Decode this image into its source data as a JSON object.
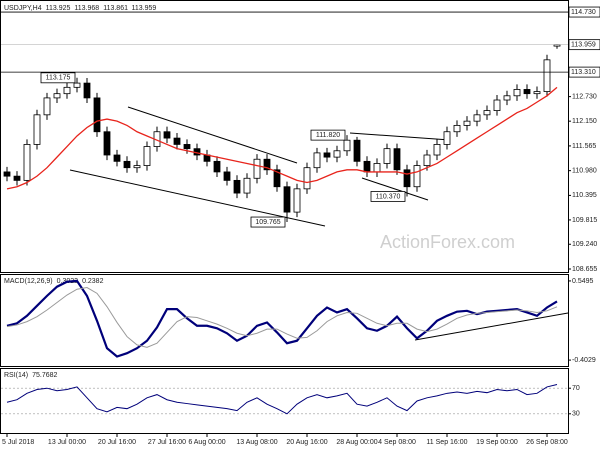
{
  "chart_data": [
    {
      "type": "candlestick",
      "title": "USDJPY,H4",
      "categories": [
        "5 Jul 2018",
        null,
        null,
        null,
        null,
        null,
        "13 Jul 00:00",
        null,
        null,
        null,
        null,
        "20 Jul 16:00",
        null,
        null,
        null,
        null,
        "27 Jul 16:00",
        null,
        null,
        null,
        "6 Aug 00:00",
        null,
        null,
        null,
        null,
        "13 Aug 08:00",
        null,
        null,
        null,
        null,
        "20 Aug 16:00",
        null,
        null,
        null,
        null,
        "28 Aug 00:00",
        null,
        null,
        null,
        "4 Sep 08:00",
        null,
        null,
        null,
        null,
        "11 Sep 16:00",
        null,
        null,
        null,
        null,
        "19 Sep 00:00",
        null,
        null,
        null,
        null,
        "26 Sep 08:00",
        null
      ],
      "open": [
        110.95,
        110.85,
        110.75,
        111.6,
        112.3,
        112.7,
        112.8,
        112.95,
        113.05,
        112.7,
        111.9,
        111.35,
        111.2,
        111.05,
        111.1,
        111.55,
        111.9,
        111.75,
        111.6,
        111.5,
        111.35,
        111.2,
        110.95,
        110.75,
        110.45,
        110.8,
        111.25,
        111.0,
        110.6,
        110.0,
        110.55,
        111.05,
        111.4,
        111.3,
        111.45,
        111.7,
        111.2,
        110.95,
        111.15,
        111.5,
        111.0,
        110.6,
        111.1,
        111.35,
        111.6,
        111.9,
        112.05,
        112.15,
        112.3,
        112.4,
        112.65,
        112.75,
        112.9,
        112.8,
        112.85,
        113.925
      ],
      "high": [
        111.07,
        110.97,
        111.72,
        112.42,
        112.82,
        112.92,
        113.07,
        113.175,
        113.17,
        112.82,
        112.02,
        111.47,
        111.32,
        111.22,
        111.67,
        112.02,
        112.02,
        111.87,
        111.72,
        111.62,
        111.47,
        111.32,
        111.07,
        110.87,
        110.92,
        111.37,
        111.37,
        111.12,
        110.72,
        110.67,
        111.17,
        111.52,
        111.52,
        111.57,
        111.82,
        111.78,
        111.32,
        111.27,
        111.62,
        111.62,
        111.12,
        111.22,
        111.47,
        111.72,
        112.02,
        112.17,
        112.27,
        112.42,
        112.52,
        112.77,
        112.87,
        113.02,
        113.02,
        112.97,
        113.72,
        113.968
      ],
      "low": [
        110.73,
        110.63,
        110.63,
        111.48,
        112.18,
        112.58,
        112.68,
        112.83,
        112.58,
        111.78,
        111.23,
        111.08,
        110.93,
        110.93,
        110.98,
        111.43,
        111.63,
        111.48,
        111.38,
        111.23,
        111.08,
        110.83,
        110.63,
        110.33,
        110.33,
        110.68,
        110.88,
        110.48,
        109.765,
        109.88,
        110.43,
        110.93,
        111.18,
        111.18,
        111.33,
        111.08,
        110.83,
        110.83,
        111.03,
        110.88,
        110.37,
        110.48,
        110.98,
        111.23,
        111.48,
        111.78,
        111.93,
        112.03,
        112.18,
        112.28,
        112.53,
        112.63,
        112.68,
        112.68,
        112.73,
        113.861
      ],
      "close": [
        110.85,
        110.75,
        111.6,
        112.3,
        112.7,
        112.8,
        112.95,
        113.05,
        112.7,
        111.9,
        111.35,
        111.2,
        111.05,
        111.1,
        111.55,
        111.9,
        111.75,
        111.6,
        111.5,
        111.35,
        111.2,
        110.95,
        110.75,
        110.45,
        110.8,
        111.25,
        111.0,
        110.6,
        110.0,
        110.55,
        111.05,
        111.4,
        111.3,
        111.45,
        111.7,
        111.2,
        110.95,
        111.15,
        111.5,
        111.0,
        110.6,
        111.1,
        111.35,
        111.6,
        111.9,
        112.05,
        112.15,
        112.3,
        112.4,
        112.65,
        112.75,
        112.9,
        112.8,
        112.85,
        113.6,
        113.959
      ],
      "color_up": "#ffffff",
      "color_down": "#000000",
      "moving_average": {
        "color": "#e8241c",
        "values": [
          110.55,
          110.6,
          110.7,
          110.85,
          111.05,
          111.3,
          111.55,
          111.8,
          112.0,
          112.15,
          112.2,
          112.15,
          112.05,
          111.9,
          111.8,
          111.7,
          111.6,
          111.5,
          111.45,
          111.4,
          111.35,
          111.3,
          111.25,
          111.2,
          111.15,
          111.1,
          111.05,
          110.95,
          110.85,
          110.75,
          110.7,
          110.75,
          110.85,
          110.95,
          111.0,
          111.0,
          110.95,
          110.95,
          110.95,
          110.95,
          110.9,
          110.95,
          111.05,
          111.15,
          111.3,
          111.45,
          111.6,
          111.75,
          111.9,
          112.05,
          112.2,
          112.35,
          112.45,
          112.6,
          112.75,
          112.95
        ]
      },
      "ylim": [
        108.584,
        114.991
      ],
      "yticks": [
        108.655,
        {
          "value": 109.24,
          "label": "109.240"
        },
        109.815,
        110.395,
        {
          "value": 110.98,
          "label": "110.980"
        },
        111.565,
        {
          "value": 112.15,
          "label": "112.150"
        },
        {
          "value": 112.73,
          "label": "112.730"
        }
      ],
      "hlines": [
        {
          "value": 114.73,
          "label": "114.730"
        },
        {
          "value": 113.31,
          "label": "113.310"
        }
      ],
      "annotations": [
        {
          "value": 113.175,
          "label": "113.175"
        },
        {
          "value": 109.765,
          "label": "109.765"
        },
        {
          "value": 111.82,
          "label": "111.820"
        },
        {
          "value": 110.37,
          "label": "110.370"
        }
      ],
      "watermark": "ActionForex.com"
    },
    {
      "type": "line",
      "title": "MACD(12,26,9)",
      "series": [
        {
          "color": "#00007a",
          "values": [
            0.01,
            0.04,
            0.13,
            0.25,
            0.37,
            0.48,
            0.54,
            0.55,
            0.37,
            0.07,
            -0.26,
            -0.36,
            -0.32,
            -0.26,
            -0.17,
            -0.01,
            0.21,
            0.21,
            0.1,
            0.01,
            0.01,
            -0.02,
            -0.08,
            -0.17,
            -0.11,
            0.01,
            0.05,
            -0.07,
            -0.2,
            -0.17,
            -0.02,
            0.13,
            0.23,
            0.17,
            0.21,
            0.1,
            -0.02,
            -0.05,
            0.01,
            0.12,
            -0.02,
            -0.14,
            -0.05,
            0.07,
            0.13,
            0.18,
            0.19,
            0.15,
            0.18,
            0.19,
            0.2,
            0.21,
            0.17,
            0.13,
            0.23,
            0.3022
          ]
        },
        {
          "color": "#9a9a9a",
          "values": [
            0.0,
            0.02,
            0.06,
            0.12,
            0.2,
            0.29,
            0.38,
            0.45,
            0.47,
            0.4,
            0.24,
            0.05,
            -0.12,
            -0.22,
            -0.25,
            -0.2,
            -0.07,
            0.06,
            0.12,
            0.11,
            0.07,
            0.03,
            -0.02,
            -0.08,
            -0.11,
            -0.08,
            -0.03,
            -0.03,
            -0.09,
            -0.14,
            -0.13,
            -0.05,
            0.06,
            0.13,
            0.17,
            0.16,
            0.1,
            0.04,
            0.01,
            0.04,
            0.04,
            -0.03,
            -0.06,
            -0.03,
            0.03,
            0.1,
            0.14,
            0.16,
            0.17,
            0.18,
            0.19,
            0.2,
            0.19,
            0.17,
            0.19,
            0.2382
          ]
        }
      ],
      "ylim": [
        -0.474,
        0.621
      ],
      "yticks": [
        0.5495,
        -0.4029
      ]
    },
    {
      "type": "line",
      "title": "RSI(14)",
      "series": [
        {
          "color": "#00007a",
          "values": [
            48,
            52,
            62,
            68,
            70,
            66,
            68,
            72,
            55,
            38,
            33,
            40,
            38,
            45,
            55,
            60,
            52,
            48,
            46,
            44,
            42,
            40,
            38,
            35,
            48,
            55,
            45,
            38,
            30,
            45,
            55,
            60,
            55,
            58,
            62,
            45,
            42,
            48,
            55,
            42,
            35,
            50,
            55,
            58,
            62,
            64,
            62,
            65,
            63,
            68,
            66,
            68,
            60,
            62,
            72,
            75.7682
          ]
        }
      ],
      "ylim": [
        0,
        100
      ],
      "yticks": [
        70,
        30
      ],
      "grid": true
    }
  ]
}
